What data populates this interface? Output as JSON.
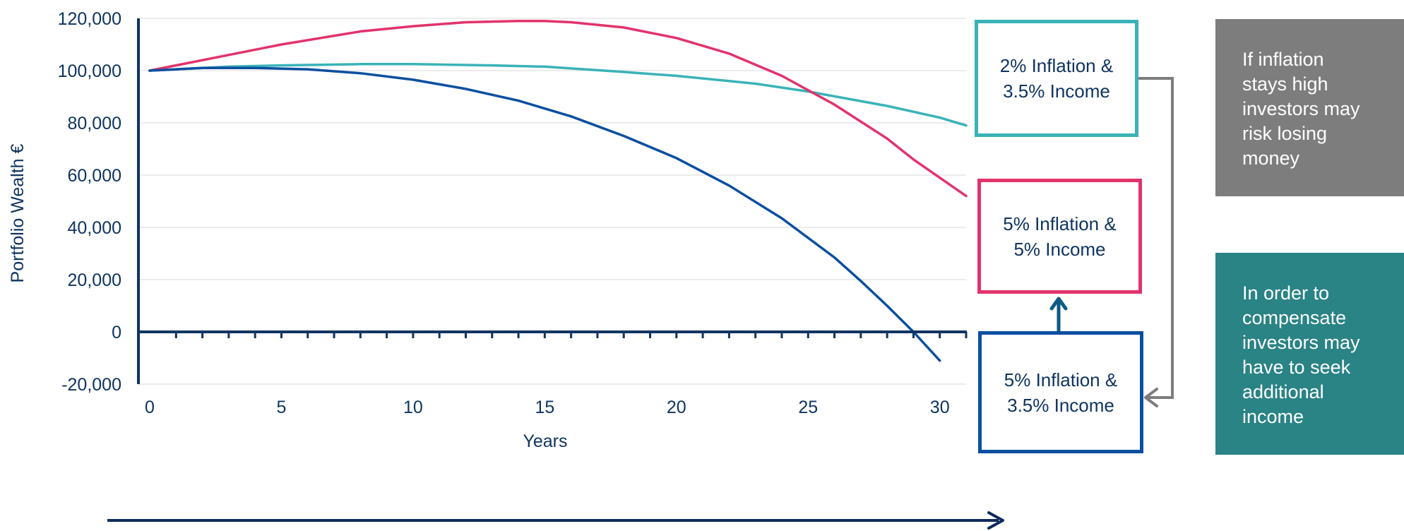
{
  "chart_data": {
    "type": "line",
    "ylabel": "Portfolio Wealth €",
    "xlabel": "Years",
    "xlim": [
      0,
      31
    ],
    "ylim": [
      -20000,
      120000
    ],
    "x_ticks": [
      "0",
      "5",
      "10",
      "15",
      "20",
      "25",
      "30"
    ],
    "y_ticks": [
      "120,000",
      "100,000",
      "80,000",
      "60,000",
      "40,000",
      "20,000",
      "0",
      "-20,000"
    ],
    "grid": "horizontal",
    "series": [
      {
        "name": "2% Inflation & 3.5% Income",
        "color": "#3ab3b8",
        "x": [
          0,
          3,
          5,
          8,
          10,
          13,
          15,
          18,
          20,
          23,
          25,
          28,
          30,
          31
        ],
        "values": [
          100000,
          101500,
          102000,
          102500,
          102500,
          102000,
          101500,
          99500,
          98000,
          95000,
          92000,
          86500,
          82000,
          79000
        ]
      },
      {
        "name": "5% Inflation & 5% Income",
        "color": "#e2336b",
        "x": [
          0,
          3,
          5,
          8,
          10,
          12,
          14,
          15,
          16,
          18,
          20,
          22,
          24,
          26,
          28,
          29,
          30,
          31
        ],
        "values": [
          100000,
          106000,
          110000,
          115000,
          117000,
          118500,
          119000,
          119000,
          118500,
          116500,
          112500,
          106500,
          98000,
          87000,
          74000,
          66000,
          59000,
          52000
        ]
      },
      {
        "name": "5% Inflation & 3.5% Income",
        "color": "#0a4fa0",
        "x": [
          0,
          2,
          4,
          6,
          8,
          10,
          12,
          14,
          16,
          18,
          20,
          22,
          24,
          26,
          27,
          28,
          29,
          30
        ],
        "values": [
          100000,
          101000,
          101000,
          100500,
          99000,
          96500,
          93000,
          88500,
          82500,
          75000,
          66500,
          56000,
          43500,
          28500,
          19500,
          10000,
          0,
          -11000
        ]
      }
    ],
    "annotations": [
      "If inflation stays high investors may risk losing money",
      "In order to compensate investors may have to seek additional income"
    ]
  },
  "legend": [
    {
      "line1": "2% Inflation &",
      "line2": "3.5% Income",
      "color": "#3ab3b8"
    },
    {
      "line1": "5% Inflation &",
      "line2": "5% Income",
      "color": "#e2336b"
    },
    {
      "line1": "5% Inflation &",
      "line2": "3.5% Income",
      "color": "#0a4fa0"
    }
  ],
  "notes": [
    {
      "lines": [
        "If inflation",
        "stays high",
        "investors may",
        "risk losing",
        "money"
      ],
      "color": "#7d7d7d"
    },
    {
      "lines": [
        "In order to",
        "compensate",
        "investors may",
        "have to seek",
        "additional",
        "income"
      ],
      "color": "#2a8385"
    }
  ],
  "colors": {
    "axis": "#0f3460",
    "grid": "#e6e6e6",
    "connector": "#7d7d7d",
    "up_arrow": "#0e5a84"
  }
}
